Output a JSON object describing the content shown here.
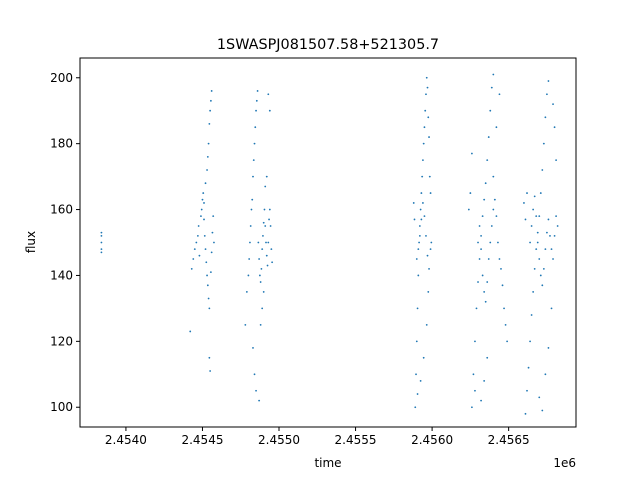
{
  "chart_data": {
    "type": "scatter",
    "title": "1SWASPJ081507.58+521305.7",
    "xlabel": "time",
    "ylabel": "flux",
    "x_offset_label": "1e6",
    "xlim": [
      2453700,
      2456940
    ],
    "ylim": [
      94,
      206
    ],
    "xticks": [
      2454000,
      2454500,
      2455000,
      2455500,
      2456000,
      2456500
    ],
    "xtick_labels": [
      "2.4540",
      "2.4545",
      "2.4550",
      "2.4555",
      "2.4560",
      "2.4565"
    ],
    "yticks": [
      100,
      120,
      140,
      160,
      180,
      200
    ],
    "ytick_labels": [
      "100",
      "120",
      "140",
      "160",
      "180",
      "200"
    ],
    "marker_color": "#1f77b4",
    "grid": false,
    "series": [
      {
        "points": [
          [
            2453840,
            147
          ],
          [
            2453840,
            148
          ],
          [
            2453840,
            150
          ],
          [
            2453840,
            152
          ],
          [
            2453840,
            153
          ],
          [
            2454420,
            123
          ],
          [
            2454430,
            142
          ],
          [
            2454440,
            145
          ],
          [
            2454450,
            148
          ],
          [
            2454460,
            150
          ],
          [
            2454470,
            152
          ],
          [
            2454475,
            155
          ],
          [
            2454480,
            146
          ],
          [
            2454490,
            158
          ],
          [
            2454495,
            160
          ],
          [
            2454500,
            163
          ],
          [
            2454505,
            165
          ],
          [
            2454510,
            157
          ],
          [
            2454515,
            152
          ],
          [
            2454520,
            148
          ],
          [
            2454525,
            144
          ],
          [
            2454530,
            140
          ],
          [
            2454535,
            137
          ],
          [
            2454540,
            133
          ],
          [
            2454545,
            130
          ],
          [
            2454545,
            115
          ],
          [
            2454550,
            111
          ],
          [
            2454555,
            141
          ],
          [
            2454560,
            147
          ],
          [
            2454565,
            153
          ],
          [
            2454570,
            158
          ],
          [
            2454575,
            150
          ],
          [
            2454530,
            172
          ],
          [
            2454540,
            180
          ],
          [
            2454545,
            186
          ],
          [
            2454550,
            190
          ],
          [
            2454555,
            193
          ],
          [
            2454560,
            196
          ],
          [
            2454510,
            162
          ],
          [
            2454520,
            168
          ],
          [
            2454535,
            176
          ],
          [
            2454780,
            125
          ],
          [
            2454790,
            135
          ],
          [
            2454800,
            140
          ],
          [
            2454805,
            145
          ],
          [
            2454810,
            150
          ],
          [
            2454815,
            155
          ],
          [
            2454820,
            160
          ],
          [
            2454825,
            163
          ],
          [
            2454830,
            170
          ],
          [
            2454835,
            175
          ],
          [
            2454840,
            180
          ],
          [
            2454845,
            185
          ],
          [
            2454850,
            190
          ],
          [
            2454855,
            193
          ],
          [
            2454860,
            196
          ],
          [
            2454865,
            150
          ],
          [
            2454870,
            145
          ],
          [
            2454875,
            140
          ],
          [
            2454880,
            138
          ],
          [
            2454885,
            142
          ],
          [
            2454890,
            148
          ],
          [
            2454895,
            152
          ],
          [
            2454900,
            156
          ],
          [
            2454905,
            160
          ],
          [
            2454910,
            155
          ],
          [
            2454915,
            150
          ],
          [
            2454920,
            146
          ],
          [
            2454925,
            143
          ],
          [
            2454930,
            150
          ],
          [
            2454935,
            157
          ],
          [
            2454940,
            160
          ],
          [
            2454945,
            155
          ],
          [
            2454950,
            148
          ],
          [
            2454955,
            144
          ],
          [
            2454830,
            118
          ],
          [
            2454840,
            110
          ],
          [
            2454850,
            105
          ],
          [
            2454870,
            102
          ],
          [
            2454880,
            125
          ],
          [
            2454890,
            130
          ],
          [
            2454900,
            135
          ],
          [
            2454910,
            167
          ],
          [
            2454920,
            170
          ],
          [
            2454930,
            195
          ],
          [
            2454940,
            190
          ],
          [
            2455890,
            100
          ],
          [
            2455895,
            110
          ],
          [
            2455900,
            120
          ],
          [
            2455905,
            130
          ],
          [
            2455910,
            140
          ],
          [
            2455915,
            150
          ],
          [
            2455920,
            155
          ],
          [
            2455925,
            160
          ],
          [
            2455930,
            165
          ],
          [
            2455935,
            170
          ],
          [
            2455940,
            175
          ],
          [
            2455945,
            180
          ],
          [
            2455950,
            185
          ],
          [
            2455955,
            190
          ],
          [
            2455960,
            195
          ],
          [
            2455965,
            200
          ],
          [
            2455970,
            197
          ],
          [
            2455975,
            188
          ],
          [
            2455980,
            182
          ],
          [
            2455985,
            170
          ],
          [
            2455990,
            165
          ],
          [
            2455995,
            150
          ],
          [
            2455900,
            145
          ],
          [
            2455910,
            148
          ],
          [
            2455920,
            152
          ],
          [
            2455930,
            157
          ],
          [
            2455940,
            162
          ],
          [
            2455950,
            158
          ],
          [
            2455960,
            152
          ],
          [
            2455970,
            146
          ],
          [
            2455980,
            142
          ],
          [
            2455990,
            148
          ],
          [
            2455880,
            162
          ],
          [
            2455885,
            157
          ],
          [
            2455905,
            104
          ],
          [
            2455925,
            108
          ],
          [
            2455945,
            115
          ],
          [
            2455965,
            125
          ],
          [
            2455975,
            135
          ],
          [
            2456260,
            100
          ],
          [
            2456270,
            110
          ],
          [
            2456280,
            120
          ],
          [
            2456290,
            130
          ],
          [
            2456300,
            138
          ],
          [
            2456310,
            145
          ],
          [
            2456320,
            152
          ],
          [
            2456330,
            158
          ],
          [
            2456340,
            163
          ],
          [
            2456350,
            168
          ],
          [
            2456360,
            175
          ],
          [
            2456370,
            182
          ],
          [
            2456380,
            190
          ],
          [
            2456390,
            197
          ],
          [
            2456400,
            201
          ],
          [
            2456300,
            150
          ],
          [
            2456310,
            155
          ],
          [
            2456320,
            148
          ],
          [
            2456330,
            140
          ],
          [
            2456340,
            135
          ],
          [
            2456350,
            132
          ],
          [
            2456360,
            138
          ],
          [
            2456370,
            145
          ],
          [
            2456380,
            150
          ],
          [
            2456390,
            155
          ],
          [
            2456400,
            160
          ],
          [
            2456410,
            163
          ],
          [
            2456420,
            158
          ],
          [
            2456430,
            150
          ],
          [
            2456440,
            145
          ],
          [
            2456450,
            142
          ],
          [
            2456460,
            137
          ],
          [
            2456470,
            130
          ],
          [
            2456480,
            125
          ],
          [
            2456490,
            120
          ],
          [
            2456240,
            160
          ],
          [
            2456250,
            165
          ],
          [
            2456260,
            177
          ],
          [
            2456280,
            105
          ],
          [
            2456320,
            102
          ],
          [
            2456340,
            108
          ],
          [
            2456360,
            115
          ],
          [
            2456400,
            170
          ],
          [
            2456420,
            185
          ],
          [
            2456440,
            195
          ],
          [
            2456610,
            98
          ],
          [
            2456620,
            105
          ],
          [
            2456630,
            112
          ],
          [
            2456640,
            120
          ],
          [
            2456650,
            128
          ],
          [
            2456660,
            135
          ],
          [
            2456670,
            142
          ],
          [
            2456680,
            148
          ],
          [
            2456690,
            153
          ],
          [
            2456700,
            158
          ],
          [
            2456710,
            165
          ],
          [
            2456720,
            172
          ],
          [
            2456730,
            180
          ],
          [
            2456740,
            188
          ],
          [
            2456750,
            195
          ],
          [
            2456760,
            199
          ],
          [
            2456640,
            150
          ],
          [
            2456650,
            155
          ],
          [
            2456660,
            160
          ],
          [
            2456670,
            164
          ],
          [
            2456680,
            158
          ],
          [
            2456690,
            150
          ],
          [
            2456700,
            145
          ],
          [
            2456710,
            140
          ],
          [
            2456720,
            137
          ],
          [
            2456730,
            142
          ],
          [
            2456740,
            148
          ],
          [
            2456750,
            153
          ],
          [
            2456760,
            157
          ],
          [
            2456770,
            152
          ],
          [
            2456780,
            148
          ],
          [
            2456790,
            145
          ],
          [
            2456800,
            152
          ],
          [
            2456810,
            158
          ],
          [
            2456820,
            155
          ],
          [
            2456600,
            162
          ],
          [
            2456610,
            157
          ],
          [
            2456620,
            165
          ],
          [
            2456700,
            103
          ],
          [
            2456720,
            99
          ],
          [
            2456740,
            110
          ],
          [
            2456760,
            118
          ],
          [
            2456780,
            130
          ],
          [
            2456790,
            192
          ],
          [
            2456800,
            185
          ],
          [
            2456810,
            175
          ]
        ]
      }
    ]
  }
}
